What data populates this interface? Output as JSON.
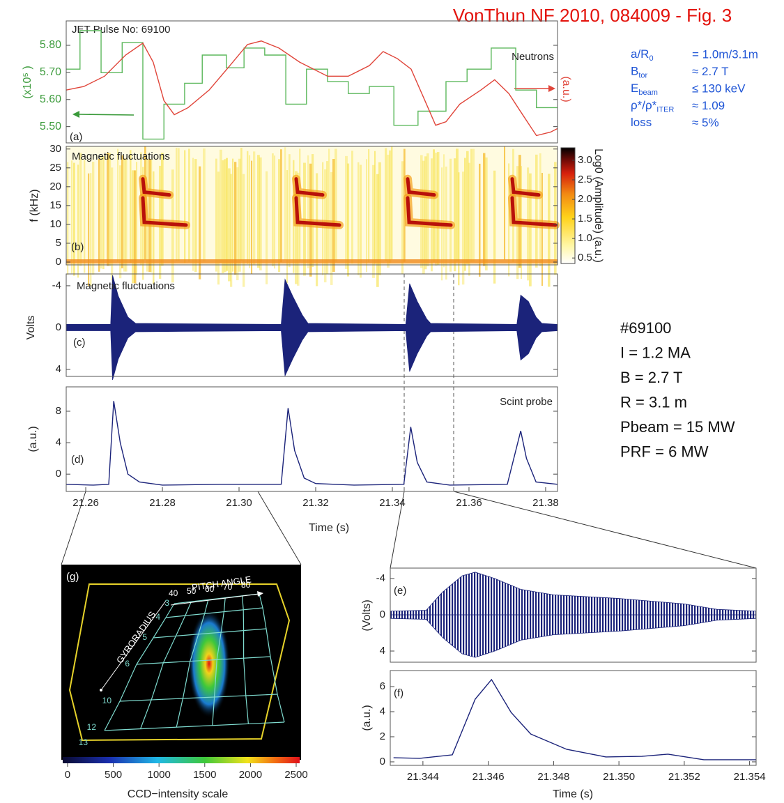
{
  "header": {
    "title": "VonThun NF 2010, 084009 - Fig. 3",
    "pulse": "JET Pulse No: 69100"
  },
  "parameters": [
    {
      "label": "a/R",
      "sub": "0",
      "value": "= 1.0m/3.1m"
    },
    {
      "label": "B",
      "sub": "tor",
      "value": "≈ 2.7 T"
    },
    {
      "label": "E",
      "sub": "beam",
      "value": "≤ 130 keV"
    },
    {
      "label": "ρ*/ρ*",
      "sub": "ITER",
      "value": "≈ 1.09"
    },
    {
      "label": "loss",
      "value": "≈ 5%"
    }
  ],
  "shot": [
    "#69100",
    "I = 1.2 MA",
    "B = 2.7 T",
    "R = 3.1 m",
    "Pbeam = 15 MW",
    "PRF = 6 MW"
  ],
  "chart_data": [
    {
      "type": "line",
      "panel_label": "(a)",
      "annotation": "Neutrons",
      "y_label": "(x10⁵ )",
      "y2_label": "(a.u.)",
      "xlim": [
        21.2549,
        21.3831
      ],
      "ylim": [
        5.44,
        5.89
      ],
      "tick_color": "#3a9a3a",
      "yticks": [
        {
          "value": 5.5,
          "label": "5.50"
        },
        {
          "value": 5.6,
          "label": "5.60"
        },
        {
          "value": 5.7,
          "label": "5.70"
        },
        {
          "value": 5.8,
          "label": "5.80"
        }
      ],
      "series": [
        {
          "color": "#5cb85c",
          "step": true,
          "x": [
            21.2549,
            21.2585,
            21.264,
            21.2695,
            21.2749,
            21.2804,
            21.2858,
            21.2904,
            21.2967,
            21.3013,
            21.3067,
            21.3122,
            21.3176,
            21.3231,
            21.3285,
            21.334,
            21.3404,
            21.3467,
            21.354,
            21.3595,
            21.3658,
            21.3722,
            21.3776
          ],
          "values": [
            5.712,
            5.854,
            5.699,
            5.81,
            5.454,
            5.583,
            5.66,
            5.764,
            5.717,
            5.79,
            5.764,
            5.583,
            5.712,
            5.666,
            5.622,
            5.648,
            5.505,
            5.557,
            5.666,
            5.712,
            5.79,
            5.635,
            5.57
          ]
        },
        {
          "color": "#e0453a",
          "x": [
            21.2549,
            21.2595,
            21.2649,
            21.2704,
            21.2749,
            21.2776,
            21.2804,
            21.2831,
            21.2867,
            21.2922,
            21.2976,
            21.3022,
            21.3058,
            21.3104,
            21.3158,
            21.3231,
            21.3285,
            21.334,
            21.3376,
            21.3413,
            21.3449,
            21.3485,
            21.3513,
            21.354,
            21.3576,
            21.3631,
            21.3667,
            21.3704,
            21.374,
            21.3776,
            21.3813,
            21.3831
          ],
          "values": [
            5.635,
            5.648,
            5.686,
            5.764,
            5.808,
            5.738,
            5.596,
            5.544,
            5.57,
            5.635,
            5.725,
            5.803,
            5.816,
            5.79,
            5.738,
            5.686,
            5.686,
            5.725,
            5.777,
            5.751,
            5.712,
            5.596,
            5.505,
            5.518,
            5.583,
            5.635,
            5.673,
            5.622,
            5.544,
            5.467,
            5.48,
            5.493
          ]
        }
      ]
    },
    {
      "type": "spectrogram",
      "panel_label": "(b)",
      "annotation": "Magnetic fluctuations",
      "y_label": "f (kHz)",
      "xlim": [
        21.2549,
        21.3831
      ],
      "ylim": [
        -0.74,
        30.7
      ],
      "yticks": [
        0,
        5,
        10,
        15,
        20,
        25,
        30
      ],
      "colorbar": {
        "label": "Log0  (Amplitude) (a.u.)",
        "lim": [
          0.36,
          3.32
        ],
        "ticks": [
          0.5,
          {
            "value": 1,
            "label": "1.0"
          },
          1.5,
          {
            "value": 2,
            "label": "2.0"
          },
          2.5,
          {
            "value": 3,
            "label": "3.0"
          }
        ]
      }
    },
    {
      "type": "envelope",
      "panel_label": "(c)",
      "annotation": "Magnetic   fluctuations",
      "y_label": "Volts",
      "xlim": [
        21.2549,
        21.3831
      ],
      "ylim": [
        -5.13,
        4.67
      ],
      "y_inverted": true,
      "yticks": [
        -4,
        0,
        4
      ],
      "color": "#1b237a",
      "x": [
        21.2549,
        21.2665,
        21.267,
        21.2685,
        21.271,
        21.273,
        21.311,
        21.312,
        21.314,
        21.3165,
        21.318,
        21.3435,
        21.3445,
        21.3465,
        21.349,
        21.35,
        21.3725,
        21.3735,
        21.3755,
        21.3775,
        21.379,
        21.3831
      ],
      "values": [
        0.3,
        0.3,
        5.0,
        3.0,
        1.0,
        0.4,
        0.3,
        4.6,
        3.0,
        1.2,
        0.4,
        0.3,
        4.2,
        2.5,
        0.8,
        0.4,
        0.3,
        3.1,
        2.5,
        1.0,
        0.4,
        0.3
      ]
    },
    {
      "type": "line",
      "panel_label": "(d)",
      "annotation": "Scint probe",
      "y_label": "(a.u.)",
      "x_label": "Time (s)",
      "xlim": [
        21.2549,
        21.3831
      ],
      "ylim": [
        -2.2,
        11.1
      ],
      "yticks": [
        0,
        4,
        8
      ],
      "xticks": [
        21.26,
        21.28,
        {
          "value": 21.3,
          "label": "21.30"
        },
        21.32,
        21.34,
        21.36,
        21.38
      ],
      "series": [
        {
          "color": "#1b237a",
          "x": [
            21.2549,
            21.262,
            21.266,
            21.2673,
            21.269,
            21.271,
            21.274,
            21.28,
            21.295,
            21.311,
            21.3128,
            21.3145,
            21.317,
            21.32,
            21.33,
            21.343,
            21.3448,
            21.3465,
            21.349,
            21.355,
            21.37,
            21.3735,
            21.375,
            21.3775,
            21.3831
          ],
          "values": [
            -1.3,
            -1.4,
            -1.3,
            9.3,
            4.0,
            0.0,
            -1.0,
            -1.4,
            -1.3,
            -1.3,
            8.4,
            3.0,
            -0.5,
            -1.2,
            -1.4,
            -1.3,
            6.0,
            1.5,
            -1.0,
            -1.4,
            -1.3,
            5.5,
            2.0,
            -1.0,
            -1.3
          ]
        }
      ]
    },
    {
      "type": "envelope",
      "panel_label": "(e)",
      "y_label": "(Volts)",
      "xlim": [
        21.343,
        21.3542
      ],
      "ylim": [
        -5.15,
        5.23
      ],
      "y_inverted": true,
      "yticks": [
        -4,
        0,
        4
      ],
      "color": "#1b237a",
      "x": [
        21.343,
        21.3441,
        21.3446,
        21.3452,
        21.3456,
        21.3462,
        21.347,
        21.348,
        21.35,
        21.352,
        21.353,
        21.3542
      ],
      "values": [
        0.4,
        0.5,
        2.5,
        4.3,
        4.7,
        4.0,
        2.8,
        2.2,
        1.8,
        1.2,
        0.6,
        0.4
      ]
    },
    {
      "type": "line",
      "panel_label": "(f)",
      "y_label": "(a.u.)",
      "x_label": "Time (s)",
      "xlim": [
        21.343,
        21.3542
      ],
      "ylim": [
        -0.28,
        7.28
      ],
      "yticks": [
        0,
        2,
        4,
        6
      ],
      "xticks": [
        21.344,
        21.346,
        21.348,
        {
          "value": 21.35,
          "label": "21.350"
        },
        21.352,
        21.354
      ],
      "series": [
        {
          "color": "#1b237a",
          "x": [
            21.3431,
            21.3439,
            21.3449,
            21.3456,
            21.3461,
            21.3467,
            21.3473,
            21.3484,
            21.3496,
            21.3507,
            21.3515,
            21.3526,
            21.3542
          ],
          "values": [
            0.33,
            0.28,
            0.56,
            5.0,
            6.56,
            3.94,
            2.22,
            1.0,
            0.39,
            0.44,
            0.61,
            0.17,
            0.17
          ]
        }
      ]
    },
    {
      "type": "image",
      "panel_label": "(g)",
      "pitch_label": "PITCH ANGLE",
      "pitch_ticks": [
        "40",
        "50",
        "60",
        "70",
        "80"
      ],
      "gyro_label": "GYRORADIUS",
      "gyro_ticks": [
        "3",
        "4",
        "5",
        "6",
        "10",
        "12",
        "13"
      ],
      "colorbar": {
        "label": "CCD−intensity scale",
        "lim": [
          -53,
          2538
        ],
        "ticks": [
          0,
          500,
          1000,
          1500,
          2000,
          2500
        ]
      }
    }
  ]
}
